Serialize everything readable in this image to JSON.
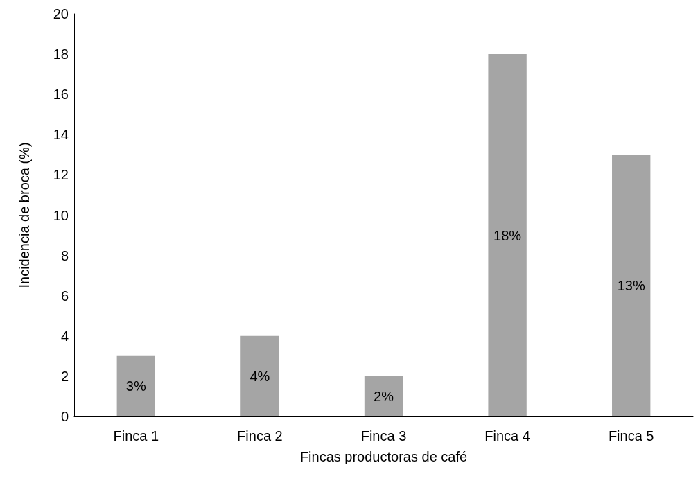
{
  "chart_data": {
    "type": "bar",
    "xlabel": "Fincas productoras de café",
    "ylabel": "Incidencia de broca (%)",
    "categories": [
      "Finca 1",
      "Finca 2",
      "Finca 3",
      "Finca 4",
      "Finca 5"
    ],
    "values": [
      3,
      4,
      2,
      18,
      13
    ],
    "value_labels": [
      "3%",
      "4%",
      "2%",
      "18%",
      "13%"
    ],
    "color": "#a5a5a5",
    "ylim": [
      0,
      20
    ],
    "yticks": [
      0,
      2,
      4,
      6,
      8,
      10,
      12,
      14,
      16,
      18,
      20
    ],
    "grid": false
  }
}
